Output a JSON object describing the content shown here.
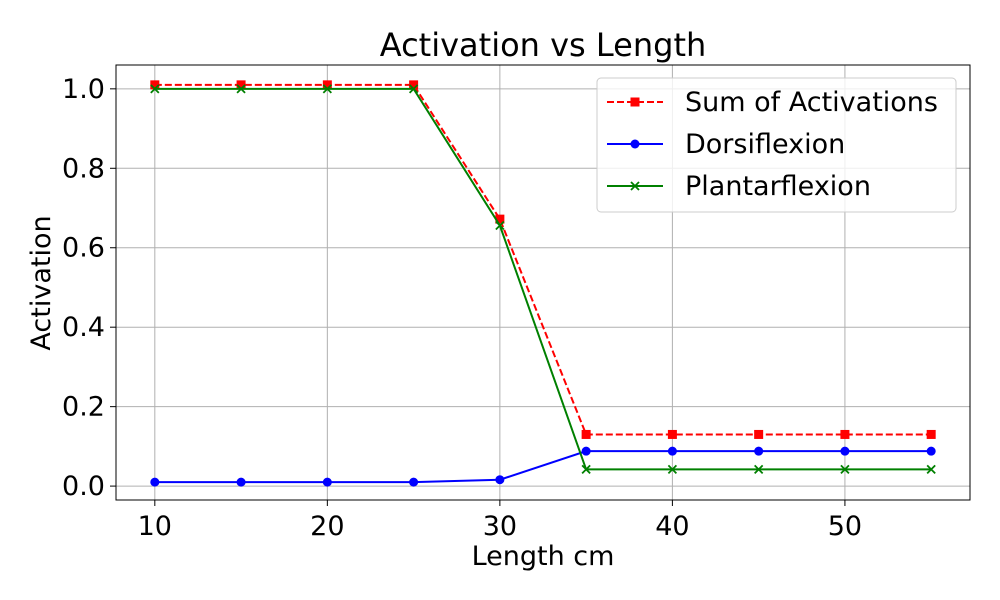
{
  "chart_data": {
    "type": "line",
    "title": "Activation vs Length",
    "xlabel": "Length cm",
    "ylabel": "Activation",
    "x": [
      10,
      15,
      20,
      25,
      30,
      35,
      40,
      45,
      50,
      55
    ],
    "xlim": [
      7.75,
      57.25
    ],
    "ylim": [
      -0.035,
      1.06
    ],
    "xticks": [
      10,
      20,
      30,
      40,
      50
    ],
    "xtick_labels": [
      "10",
      "20",
      "30",
      "40",
      "50"
    ],
    "yticks": [
      0.0,
      0.2,
      0.4,
      0.6,
      0.8,
      1.0
    ],
    "ytick_labels": [
      "0.0",
      "0.2",
      "0.4",
      "0.6",
      "0.8",
      "1.0"
    ],
    "grid": true,
    "legend_position": "top-right",
    "series": [
      {
        "name": "Sum of Activations",
        "values": [
          1.01,
          1.01,
          1.01,
          1.01,
          0.672,
          0.13,
          0.13,
          0.13,
          0.13,
          0.13
        ],
        "color": "#ff0000",
        "marker": "square",
        "dash": "dashed"
      },
      {
        "name": "Dorsiflexion",
        "values": [
          0.01,
          0.01,
          0.01,
          0.01,
          0.016,
          0.088,
          0.088,
          0.088,
          0.088,
          0.088
        ],
        "color": "#0000ff",
        "marker": "circle",
        "dash": "solid"
      },
      {
        "name": "Plantarflexion",
        "values": [
          1.0,
          1.0,
          1.0,
          1.0,
          0.656,
          0.042,
          0.042,
          0.042,
          0.042,
          0.042
        ],
        "color": "#008000",
        "marker": "x",
        "dash": "solid"
      }
    ]
  }
}
